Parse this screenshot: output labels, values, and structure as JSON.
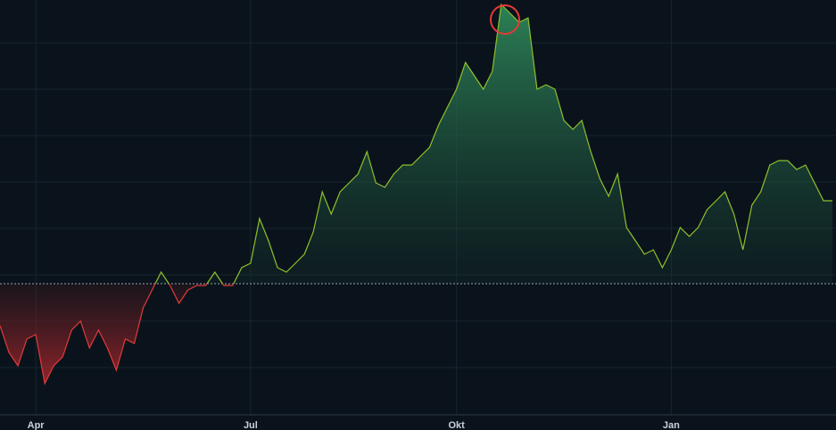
{
  "chart_data": {
    "type": "area",
    "categories": [
      null,
      null,
      null,
      null,
      "Apr",
      null,
      null,
      null,
      null,
      null,
      null,
      null,
      null,
      null,
      null,
      null,
      null,
      null,
      null,
      null,
      null,
      null,
      null,
      null,
      null,
      null,
      null,
      null,
      "Jul",
      null,
      null,
      null,
      null,
      null,
      null,
      null,
      null,
      null,
      null,
      null,
      null,
      null,
      null,
      null,
      null,
      null,
      null,
      null,
      null,
      null,
      null,
      "Okt",
      null,
      null,
      null,
      null,
      null,
      null,
      null,
      null,
      null,
      null,
      null,
      null,
      null,
      null,
      null,
      null,
      null,
      null,
      null,
      null,
      null,
      null,
      null,
      "Jan",
      null,
      null,
      null,
      null,
      null,
      null,
      null,
      null,
      null,
      null,
      null,
      null,
      null,
      null,
      null,
      null,
      null,
      null
    ],
    "values": [
      -47,
      -77,
      -92,
      -62,
      -57,
      -112,
      -92,
      -82,
      -52,
      -42,
      -72,
      -52,
      -72,
      -97,
      -62,
      -67,
      -27,
      -7,
      13,
      -2,
      -22,
      -7,
      -2,
      -2,
      13,
      -2,
      -2,
      18,
      23,
      73,
      48,
      18,
      13,
      23,
      33,
      58,
      103,
      78,
      103,
      113,
      123,
      148,
      113,
      108,
      123,
      133,
      133,
      143,
      153,
      178,
      198,
      218,
      248,
      233,
      218,
      238,
      313,
      303,
      293,
      298,
      218,
      223,
      218,
      183,
      173,
      183,
      148,
      118,
      98,
      123,
      63,
      48,
      33,
      38,
      18,
      38,
      63,
      53,
      63,
      83,
      93,
      103,
      78,
      38,
      88,
      103,
      133,
      138,
      138,
      128,
      133,
      113,
      93,
      93
    ],
    "ylim": [
      -147,
      318
    ],
    "yticks": [
      270,
      218,
      166,
      114,
      62,
      10,
      -42,
      -94
    ],
    "grid": true,
    "baseline": 0,
    "color_up": "#8fbf2a",
    "color_down": "#e0393b"
  }
}
